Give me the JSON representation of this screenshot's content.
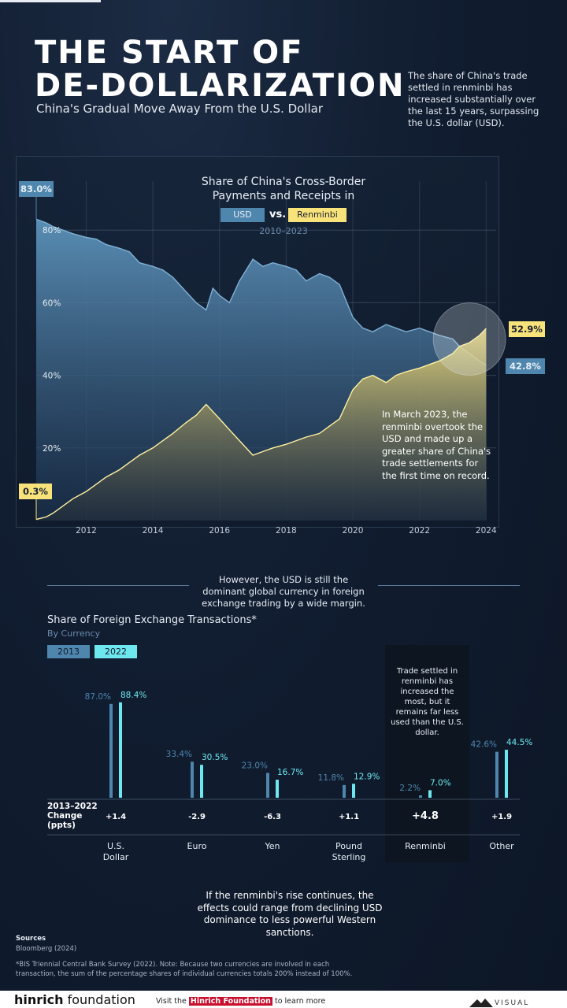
{
  "header": {
    "title_line1": "THE START OF",
    "title_line2": "DE-DOLLARIZATION",
    "subtitle": "China's Gradual Move Away From the U.S. Dollar",
    "intro": "The share of China's trade settled in renminbi has increased substantially over the last 15 years, surpassing the U.S. dollar (USD)."
  },
  "chart1": {
    "title": "Share of China's Cross-Border Payments and Receipts in",
    "legend_usd": "USD",
    "legend_vs": "vs.",
    "legend_rmb": "Renminbi",
    "years": "2010–2023",
    "callout_usd_start": "83.0%",
    "callout_rmb_start": "0.3%",
    "callout_rmb_end": "52.9%",
    "callout_usd_end": "42.8%",
    "annotation": "In March 2023, the renminbi overtook the USD and made up a greater share of China's trade settlements for the first time on record.",
    "colors": {
      "usd": "#4f86ad",
      "rmb": "#f8e27a"
    }
  },
  "chart_data": [
    {
      "type": "area",
      "title": "Share of China's Cross-Border Payments and Receipts in USD vs. Renminbi",
      "subtitle": "2010–2023",
      "x_ticks": [
        "2012",
        "2014",
        "2016",
        "2018",
        "2020",
        "2022",
        "2024"
      ],
      "y_ticks": [
        "20%",
        "40%",
        "60%",
        "80%"
      ],
      "ylim": [
        0,
        100
      ],
      "xlim": [
        2010.5,
        2024.3
      ],
      "grid": true,
      "legend": "top-center",
      "series": [
        {
          "name": "USD",
          "x": [
            2010.5,
            2010.8,
            2011.0,
            2011.3,
            2011.6,
            2012.0,
            2012.3,
            2012.6,
            2013.0,
            2013.3,
            2013.6,
            2014.0,
            2014.3,
            2014.6,
            2015.0,
            2015.3,
            2015.6,
            2015.8,
            2016.0,
            2016.3,
            2016.6,
            2017.0,
            2017.3,
            2017.6,
            2018.0,
            2018.3,
            2018.6,
            2019.0,
            2019.3,
            2019.6,
            2020.0,
            2020.3,
            2020.6,
            2021.0,
            2021.3,
            2021.6,
            2022.0,
            2022.3,
            2022.6,
            2023.0,
            2023.2,
            2023.5,
            2023.8,
            2024.0
          ],
          "values": [
            83.0,
            82,
            81,
            80,
            79,
            78,
            77.5,
            76,
            75,
            74,
            71,
            70,
            69,
            67,
            63,
            60,
            58,
            64,
            62,
            60,
            66,
            72,
            70,
            71,
            70,
            69,
            66,
            68,
            67,
            65,
            56,
            53,
            52,
            54,
            53,
            52,
            53,
            52,
            51,
            50,
            48,
            46,
            44,
            42.8
          ]
        },
        {
          "name": "Renminbi",
          "x": [
            2010.5,
            2010.8,
            2011.0,
            2011.3,
            2011.6,
            2012.0,
            2012.3,
            2012.6,
            2013.0,
            2013.3,
            2013.6,
            2014.0,
            2014.3,
            2014.6,
            2015.0,
            2015.3,
            2015.6,
            2015.8,
            2016.0,
            2016.3,
            2016.6,
            2017.0,
            2017.3,
            2017.6,
            2018.0,
            2018.3,
            2018.6,
            2019.0,
            2019.3,
            2019.6,
            2020.0,
            2020.3,
            2020.6,
            2021.0,
            2021.3,
            2021.6,
            2022.0,
            2022.3,
            2022.6,
            2023.0,
            2023.2,
            2023.5,
            2023.8,
            2024.0
          ],
          "values": [
            0.3,
            1,
            2,
            4,
            6,
            8,
            10,
            12,
            14,
            16,
            18,
            20,
            22,
            24,
            27,
            29,
            32,
            30,
            28,
            25,
            22,
            18,
            19,
            20,
            21,
            22,
            23,
            24,
            26,
            28,
            36,
            39,
            40,
            38,
            40,
            41,
            42,
            43,
            44,
            46,
            48,
            49,
            51,
            52.9
          ]
        }
      ]
    },
    {
      "type": "bar",
      "title": "Share of Foreign Exchange Transactions*",
      "subtitle": "By Currency",
      "categories": [
        "U.S. Dollar",
        "Euro",
        "Yen",
        "Pound Sterling",
        "Renminbi",
        "Other"
      ],
      "series": [
        {
          "name": "2013",
          "values": [
            87.0,
            33.4,
            23.0,
            11.8,
            2.2,
            42.6
          ]
        },
        {
          "name": "2022",
          "values": [
            88.4,
            30.5,
            16.7,
            12.9,
            7.0,
            44.5
          ]
        }
      ],
      "change_label": "2013–2022 Change (ppts)",
      "changes": [
        "+1.4",
        "-2.9",
        "-6.3",
        "+1.1",
        "+4.8",
        "+1.9"
      ],
      "value_labels_2013": [
        "87.0%",
        "33.4%",
        "23.0%",
        "11.8%",
        "2.2%",
        "42.6%"
      ],
      "value_labels_2022": [
        "88.4%",
        "30.5%",
        "16.7%",
        "12.9%",
        "7.0%",
        "44.5%"
      ],
      "category_labels": [
        [
          "U.S.",
          "Dollar"
        ],
        [
          "Euro"
        ],
        [
          "Yen"
        ],
        [
          "Pound",
          "Sterling"
        ],
        [
          "Renminbi"
        ],
        [
          "Other"
        ]
      ],
      "colors": {
        "2013": "#4f86ad",
        "2022": "#6ee8ef"
      }
    }
  ],
  "section2": {
    "note": "However, the USD is still the dominant global currency in foreign exchange trading by a wide margin.",
    "title": "Share of Foreign Exchange Transactions*",
    "subtitle": "By Currency",
    "legend_2013": "2013",
    "legend_2022": "2022",
    "highlight_text": "Trade settled in renminbi has increased the most, but it remains far less used than the U.S. dollar.",
    "change_label_line1": "2013–2022",
    "change_label_line2": "Change",
    "change_label_line3": "(ppts)"
  },
  "closing": "If the renminbi's rise continues, the effects could range from declining USD dominance to less powerful Western sanctions.",
  "sources": {
    "heading": "Sources",
    "text": "Bloomberg (2024)",
    "footnote": "*BIS Triennial Central Bank Survey (2022). Note: Because two currencies are involved in each transaction, the sum of the percentage shares of individual currencies totals 200% instead of 100%."
  },
  "footer": {
    "brand_part1": "hinrich",
    "brand_part2": " foundation",
    "visit_pre": "Visit the ",
    "visit_highlight": "Hinrich Foundation",
    "visit_post": " to learn more",
    "logo_text": "VISUAL"
  }
}
